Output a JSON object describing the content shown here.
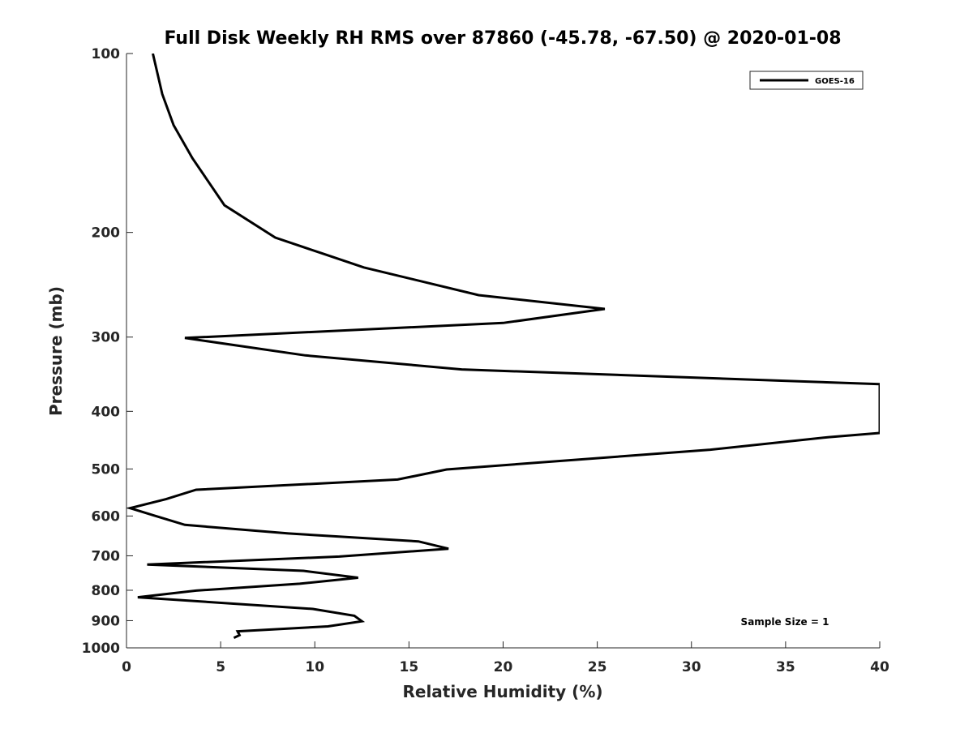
{
  "chart_data": {
    "type": "line",
    "title": "Full Disk Weekly RH RMS over 87860 (-45.78, -67.50) @ 2020-01-08",
    "xlabel": "Relative Humidity (%)",
    "ylabel": "Pressure (mb)",
    "xlim": [
      0,
      40
    ],
    "ylim": [
      100,
      1000
    ],
    "y_scale": "log",
    "y_reversed": true,
    "x_ticks": [
      0,
      5,
      10,
      15,
      20,
      25,
      30,
      35,
      40
    ],
    "y_ticks": [
      100,
      200,
      300,
      400,
      500,
      600,
      700,
      800,
      900,
      1000
    ],
    "grid": false,
    "legend": {
      "position": "top-right"
    },
    "annotation": "Sample Size = 1",
    "series": [
      {
        "name": "GOES-16",
        "color": "#000000",
        "points": [
          [
            1.4,
            100
          ],
          [
            1.9,
            117
          ],
          [
            2.5,
            132
          ],
          [
            3.5,
            150
          ],
          [
            5.2,
            180
          ],
          [
            7.9,
            204
          ],
          [
            10.4,
            217
          ],
          [
            12.6,
            229
          ],
          [
            18.7,
            255
          ],
          [
            25.4,
            269
          ],
          [
            20.0,
            284
          ],
          [
            3.1,
            301
          ],
          [
            9.5,
            322
          ],
          [
            17.8,
            340
          ],
          [
            40.0,
            360
          ],
          [
            40.0,
            435
          ],
          [
            37.3,
            442
          ],
          [
            31.0,
            464
          ],
          [
            17.0,
            501
          ],
          [
            14.4,
            521
          ],
          [
            3.7,
            542
          ],
          [
            2.1,
            562
          ],
          [
            0.2,
            582
          ],
          [
            1.4,
            598
          ],
          [
            3.1,
            621
          ],
          [
            8.6,
            642
          ],
          [
            15.5,
            662
          ],
          [
            17.1,
            681
          ],
          [
            11.3,
            702
          ],
          [
            1.1,
            724
          ],
          [
            9.4,
            742
          ],
          [
            12.3,
            762
          ],
          [
            9.2,
            780
          ],
          [
            3.7,
            801
          ],
          [
            0.6,
            822
          ],
          [
            9.9,
            860
          ],
          [
            12.1,
            883
          ],
          [
            12.5,
            902
          ],
          [
            10.7,
            920
          ],
          [
            5.9,
            938
          ],
          [
            6.0,
            952
          ],
          [
            5.7,
            962
          ]
        ]
      }
    ]
  }
}
